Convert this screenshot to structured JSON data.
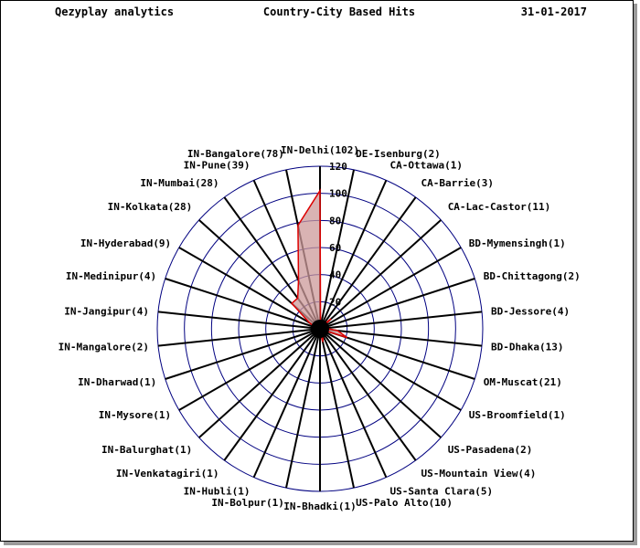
{
  "header": {
    "left": "Qezyplay analytics",
    "center": "Country-City Based Hits",
    "right": "31-01-2017"
  },
  "chart_data": {
    "type": "radar",
    "title": "Country-City Based Hits",
    "rlim": [
      0,
      120
    ],
    "ring_ticks": [
      20,
      40,
      60,
      80,
      100,
      120
    ],
    "grid": true,
    "categories": [
      "IN-Delhi(102)",
      "DE-Isenburg(2)",
      "CA-Ottawa(1)",
      "CA-Barrie(3)",
      "CA-Lac-Castor(11)",
      "BD-Mymensingh(1)",
      "BD-Chittagong(2)",
      "BD-Jessore(4)",
      "BD-Dhaka(13)",
      "OM-Muscat(21)",
      "US-Broomfield(1)",
      "US-Pasadena(2)",
      "US-Mountain View(4)",
      "US-Santa Clara(5)",
      "US-Palo Alto(10)",
      "IN-Bhadki(1)",
      "IN-Bolpur(1)",
      "IN-Hubli(1)",
      "IN-Venkatagiri(1)",
      "IN-Balurghat(1)",
      "IN-Mysore(1)",
      "IN-Dharwad(1)",
      "IN-Mangalore(2)",
      "IN-Jangipur(4)",
      "IN-Medinipur(4)",
      "IN-Hyderabad(9)",
      "IN-Kolkata(28)",
      "IN-Mumbai(28)",
      "IN-Pune(39)",
      "IN-Bangalore(78)"
    ],
    "series": [
      {
        "values": [
          102,
          2,
          1,
          3,
          11,
          1,
          2,
          4,
          13,
          21,
          1,
          2,
          4,
          5,
          10,
          1,
          1,
          1,
          1,
          1,
          1,
          1,
          2,
          4,
          4,
          9,
          28,
          28,
          39,
          78
        ]
      }
    ],
    "colors": {
      "fill": "#cc9999",
      "line": "#dd0000",
      "grid_ring": "#000080",
      "spoke": "#000000",
      "hub": "#000000"
    }
  }
}
